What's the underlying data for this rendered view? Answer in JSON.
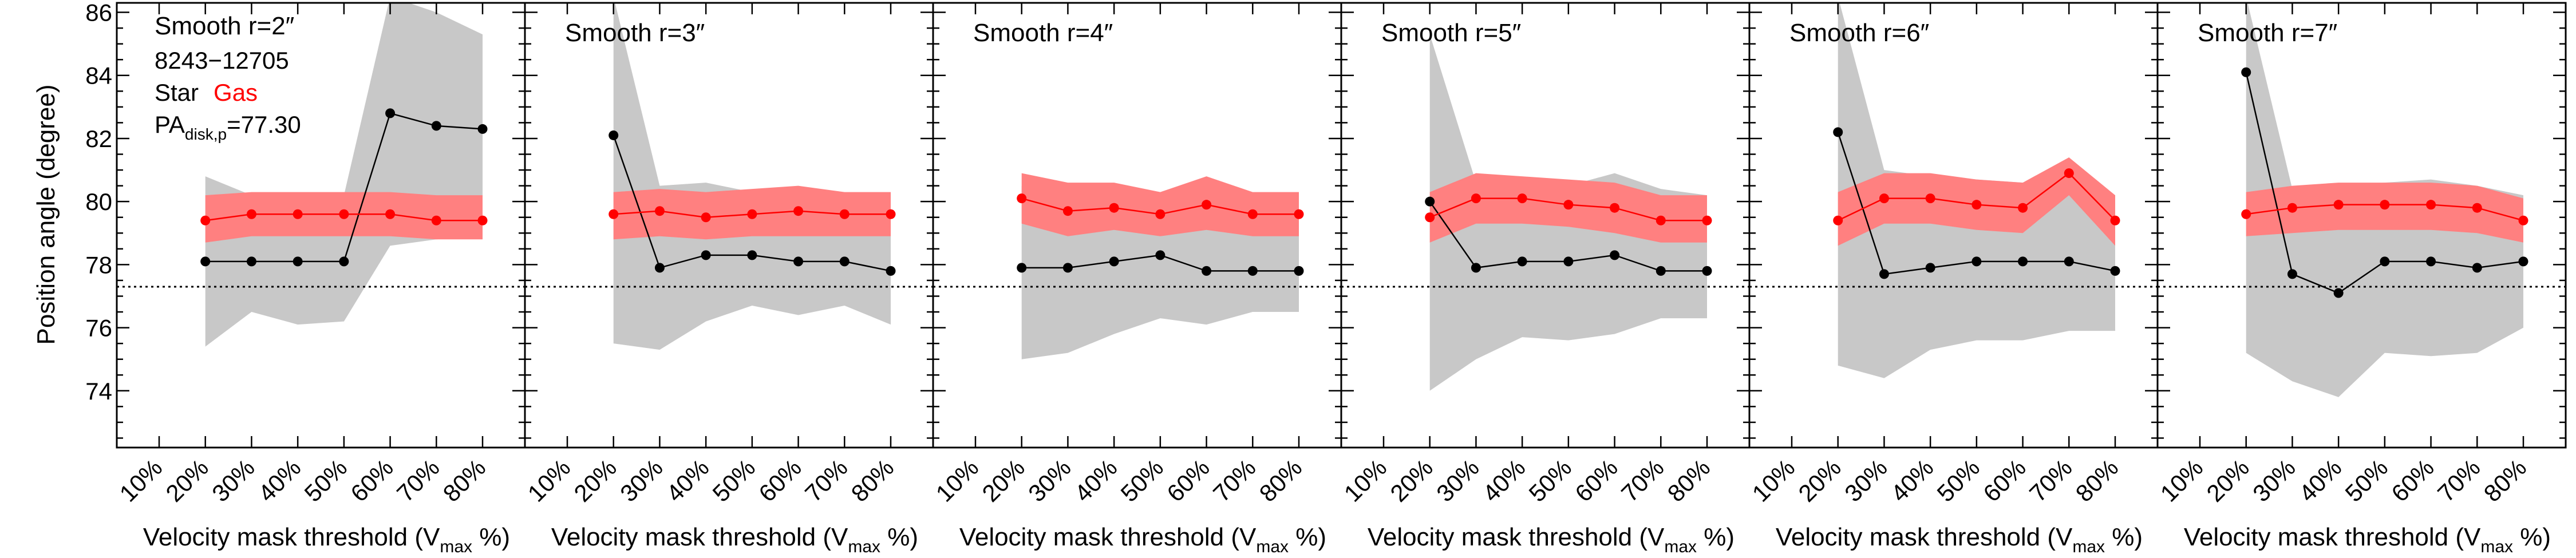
{
  "figure": {
    "ylabel": "Position angle (degree)",
    "xlabel_prefix": "Velocity mask threshold (V",
    "xlabel_sub": "max",
    "xlabel_suffix": " %)",
    "info_lines": [
      "8243−12705"
    ],
    "legend": {
      "star": "Star",
      "gas": "Gas"
    },
    "pa_prefix": "PA",
    "pa_sub": "disk,p",
    "pa_suffix": "=77.30"
  },
  "colors": {
    "star": "#000000",
    "gas": "#ff0000",
    "gas_band": "#ff8080",
    "star_band": "#c8c8c8",
    "reference_line": "#000000"
  },
  "chart_data": [
    {
      "type": "line",
      "title": "Smooth r=2″",
      "categories": [
        "10%",
        "20%",
        "30%",
        "40%",
        "50%",
        "60%",
        "70%",
        "80%"
      ],
      "ylim": [
        72.2,
        86.3
      ],
      "yticks": [
        74,
        76,
        78,
        80,
        82,
        84,
        86
      ],
      "reference_line": 77.3,
      "grid": false,
      "series": [
        {
          "name": "Star",
          "values": [
            null,
            78.1,
            78.1,
            78.1,
            78.1,
            82.8,
            82.4,
            82.3
          ],
          "band_low": [
            null,
            75.4,
            76.5,
            76.1,
            76.2,
            78.6,
            78.8,
            78.9
          ],
          "band_high": [
            null,
            80.8,
            80.2,
            80.1,
            80.2,
            86.5,
            86.0,
            85.3
          ]
        },
        {
          "name": "Gas",
          "values": [
            null,
            79.4,
            79.6,
            79.6,
            79.6,
            79.6,
            79.4,
            79.4
          ],
          "band_low": [
            null,
            78.7,
            78.9,
            78.9,
            78.9,
            78.9,
            78.8,
            78.8
          ],
          "band_high": [
            null,
            80.2,
            80.3,
            80.3,
            80.3,
            80.3,
            80.2,
            80.2
          ]
        }
      ]
    },
    {
      "type": "line",
      "title": "Smooth r=3″",
      "categories": [
        "10%",
        "20%",
        "30%",
        "40%",
        "50%",
        "60%",
        "70%",
        "80%"
      ],
      "ylim": [
        72.2,
        86.3
      ],
      "yticks": [
        74,
        76,
        78,
        80,
        82,
        84,
        86
      ],
      "reference_line": 77.3,
      "grid": false,
      "series": [
        {
          "name": "Star",
          "values": [
            null,
            82.1,
            77.9,
            78.3,
            78.3,
            78.1,
            78.1,
            77.8
          ],
          "band_low": [
            null,
            75.5,
            75.3,
            76.2,
            76.7,
            76.4,
            76.7,
            76.1
          ],
          "band_high": [
            null,
            86.5,
            80.5,
            80.6,
            80.3,
            80.4,
            80.2,
            80.0
          ]
        },
        {
          "name": "Gas",
          "values": [
            null,
            79.6,
            79.7,
            79.5,
            79.6,
            79.7,
            79.6,
            79.6
          ],
          "band_low": [
            null,
            78.8,
            78.9,
            78.8,
            78.9,
            78.9,
            78.9,
            78.9
          ],
          "band_high": [
            null,
            80.3,
            80.4,
            80.3,
            80.4,
            80.5,
            80.3,
            80.3
          ]
        }
      ]
    },
    {
      "type": "line",
      "title": "Smooth r=4″",
      "categories": [
        "10%",
        "20%",
        "30%",
        "40%",
        "50%",
        "60%",
        "70%",
        "80%"
      ],
      "ylim": [
        72.2,
        86.3
      ],
      "yticks": [
        74,
        76,
        78,
        80,
        82,
        84,
        86
      ],
      "reference_line": 77.3,
      "grid": false,
      "series": [
        {
          "name": "Star",
          "values": [
            null,
            77.9,
            77.9,
            78.1,
            78.3,
            77.8,
            77.8,
            77.8
          ],
          "band_low": [
            null,
            75.0,
            75.2,
            75.8,
            76.3,
            76.1,
            76.5,
            76.5
          ],
          "band_high": [
            null,
            80.5,
            80.3,
            80.5,
            80.3,
            80.6,
            80.1,
            80.1
          ]
        },
        {
          "name": "Gas",
          "values": [
            null,
            80.1,
            79.7,
            79.8,
            79.6,
            79.9,
            79.6,
            79.6
          ],
          "band_low": [
            null,
            79.3,
            78.9,
            79.1,
            78.9,
            79.1,
            78.9,
            78.9
          ],
          "band_high": [
            null,
            80.9,
            80.6,
            80.6,
            80.3,
            80.8,
            80.3,
            80.3
          ]
        }
      ]
    },
    {
      "type": "line",
      "title": "Smooth r=5″",
      "categories": [
        "10%",
        "20%",
        "30%",
        "40%",
        "50%",
        "60%",
        "70%",
        "80%"
      ],
      "ylim": [
        72.2,
        86.3
      ],
      "yticks": [
        74,
        76,
        78,
        80,
        82,
        84,
        86
      ],
      "reference_line": 77.3,
      "grid": false,
      "series": [
        {
          "name": "Star",
          "values": [
            null,
            80.0,
            77.9,
            78.1,
            78.1,
            78.3,
            77.8,
            77.8
          ],
          "band_low": [
            null,
            74.0,
            75.0,
            75.7,
            75.6,
            75.8,
            76.3,
            76.3
          ],
          "band_high": [
            null,
            85.3,
            80.6,
            80.6,
            80.5,
            80.9,
            80.4,
            80.2
          ]
        },
        {
          "name": "Gas",
          "values": [
            null,
            79.5,
            80.1,
            80.1,
            79.9,
            79.8,
            79.4,
            79.4
          ],
          "band_low": [
            null,
            78.7,
            79.3,
            79.3,
            79.2,
            79.0,
            78.7,
            78.7
          ],
          "band_high": [
            null,
            80.3,
            80.9,
            80.8,
            80.7,
            80.6,
            80.2,
            80.2
          ]
        }
      ]
    },
    {
      "type": "line",
      "title": "Smooth r=6″",
      "categories": [
        "10%",
        "20%",
        "30%",
        "40%",
        "50%",
        "60%",
        "70%",
        "80%"
      ],
      "ylim": [
        72.2,
        86.3
      ],
      "yticks": [
        74,
        76,
        78,
        80,
        82,
        84,
        86
      ],
      "reference_line": 77.3,
      "grid": false,
      "series": [
        {
          "name": "Star",
          "values": [
            null,
            82.2,
            77.7,
            77.9,
            78.1,
            78.1,
            78.1,
            77.8
          ],
          "band_low": [
            null,
            74.8,
            74.4,
            75.3,
            75.6,
            75.6,
            75.9,
            75.9
          ],
          "band_high": [
            null,
            86.5,
            81.0,
            80.8,
            80.7,
            80.6,
            81.0,
            80.1
          ]
        },
        {
          "name": "Gas",
          "values": [
            null,
            79.4,
            80.1,
            80.1,
            79.9,
            79.8,
            80.9,
            79.4
          ],
          "band_low": [
            null,
            78.6,
            79.3,
            79.3,
            79.1,
            79.0,
            80.2,
            78.6
          ],
          "band_high": [
            null,
            80.3,
            80.9,
            80.9,
            80.7,
            80.6,
            81.4,
            80.2
          ]
        }
      ]
    },
    {
      "type": "line",
      "title": "Smooth r=7″",
      "categories": [
        "10%",
        "20%",
        "30%",
        "40%",
        "50%",
        "60%",
        "70%",
        "80%"
      ],
      "ylim": [
        72.2,
        86.3
      ],
      "yticks": [
        74,
        76,
        78,
        80,
        82,
        84,
        86
      ],
      "reference_line": 77.3,
      "grid": false,
      "series": [
        {
          "name": "Star",
          "values": [
            null,
            84.1,
            77.7,
            77.1,
            78.1,
            78.1,
            77.9,
            78.1
          ],
          "band_low": [
            null,
            75.2,
            74.3,
            73.8,
            75.2,
            75.1,
            75.2,
            76.0
          ],
          "band_high": [
            null,
            86.5,
            80.4,
            80.5,
            80.6,
            80.7,
            80.5,
            80.2
          ]
        },
        {
          "name": "Gas",
          "values": [
            null,
            79.6,
            79.8,
            79.9,
            79.9,
            79.9,
            79.8,
            79.4
          ],
          "band_low": [
            null,
            78.9,
            79.0,
            79.1,
            79.1,
            79.1,
            79.0,
            78.7
          ],
          "band_high": [
            null,
            80.3,
            80.5,
            80.6,
            80.6,
            80.6,
            80.5,
            80.1
          ]
        }
      ]
    }
  ]
}
